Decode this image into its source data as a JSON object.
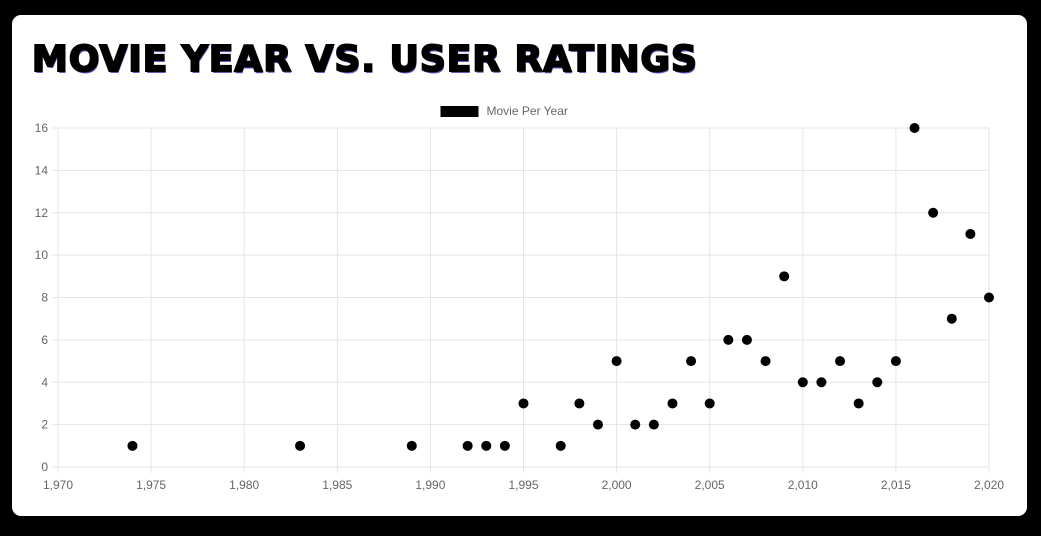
{
  "page": {
    "title": "MOVIE YEAR VS. USER RATINGS"
  },
  "colors": {
    "background": "#000000",
    "card": "#ffffff",
    "point": "#000000",
    "grid": "#e5e5e5",
    "tick_text": "#666666",
    "title_shadow": "#6a56c8"
  },
  "chart_data": {
    "type": "scatter",
    "title": "",
    "xlabel": "",
    "ylabel": "",
    "xlim": [
      1970,
      2020
    ],
    "ylim": [
      0,
      16
    ],
    "x_ticks": [
      1970,
      1975,
      1980,
      1985,
      1990,
      1995,
      2000,
      2005,
      2010,
      2015,
      2020
    ],
    "x_tick_labels": [
      "1,970",
      "1,975",
      "1,980",
      "1,985",
      "1,990",
      "1,995",
      "2,000",
      "2,005",
      "2,010",
      "2,015",
      "2,020"
    ],
    "y_ticks": [
      0,
      2,
      4,
      6,
      8,
      10,
      12,
      14,
      16
    ],
    "y_tick_labels": [
      "0",
      "2",
      "4",
      "6",
      "8",
      "10",
      "12",
      "14",
      "16"
    ],
    "grid": true,
    "legend_position": "top-center",
    "series": [
      {
        "name": "Movie Per Year",
        "color": "#000000",
        "points": [
          {
            "x": 1974,
            "y": 1
          },
          {
            "x": 1983,
            "y": 1
          },
          {
            "x": 1989,
            "y": 1
          },
          {
            "x": 1992,
            "y": 1
          },
          {
            "x": 1993,
            "y": 1
          },
          {
            "x": 1994,
            "y": 1
          },
          {
            "x": 1995,
            "y": 3
          },
          {
            "x": 1997,
            "y": 1
          },
          {
            "x": 1998,
            "y": 3
          },
          {
            "x": 1999,
            "y": 2
          },
          {
            "x": 2000,
            "y": 5
          },
          {
            "x": 2001,
            "y": 2
          },
          {
            "x": 2002,
            "y": 2
          },
          {
            "x": 2003,
            "y": 3
          },
          {
            "x": 2004,
            "y": 5
          },
          {
            "x": 2005,
            "y": 3
          },
          {
            "x": 2006,
            "y": 6
          },
          {
            "x": 2007,
            "y": 6
          },
          {
            "x": 2008,
            "y": 5
          },
          {
            "x": 2009,
            "y": 9
          },
          {
            "x": 2010,
            "y": 4
          },
          {
            "x": 2011,
            "y": 4
          },
          {
            "x": 2012,
            "y": 5
          },
          {
            "x": 2013,
            "y": 3
          },
          {
            "x": 2014,
            "y": 4
          },
          {
            "x": 2015,
            "y": 5
          },
          {
            "x": 2016,
            "y": 16
          },
          {
            "x": 2017,
            "y": 12
          },
          {
            "x": 2018,
            "y": 7
          },
          {
            "x": 2019,
            "y": 11
          },
          {
            "x": 2020,
            "y": 8
          }
        ]
      }
    ]
  }
}
